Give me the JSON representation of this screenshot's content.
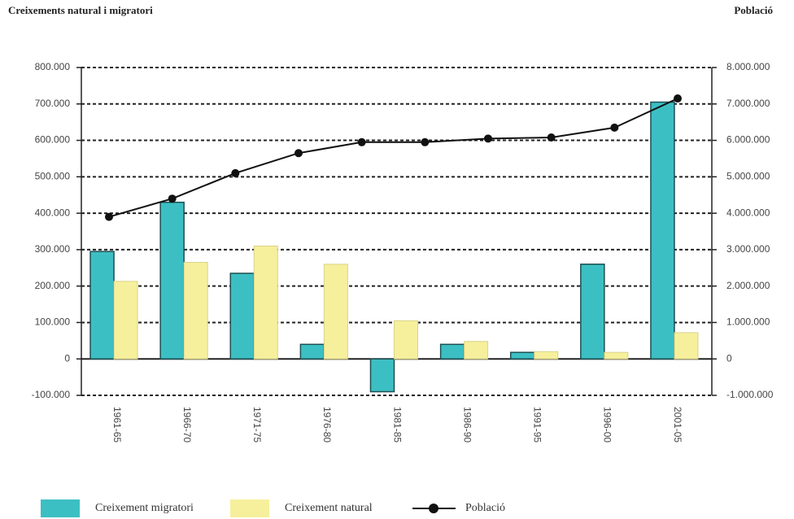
{
  "chart_data": {
    "type": "bar",
    "title": "Creixements natural i migratori",
    "y2_title": "Població",
    "categories": [
      "1961-65",
      "1966-70",
      "1971-75",
      "1976-80",
      "1981-85",
      "1986-90",
      "1991-95",
      "1996-00",
      "2001-05"
    ],
    "series": [
      {
        "name": "Creixement migratori",
        "color": "#3cbfc3",
        "values": [
          295000,
          430000,
          235000,
          40000,
          -90000,
          40000,
          18000,
          260000,
          705000
        ]
      },
      {
        "name": "Creixement natural",
        "color": "#f6f09c",
        "values": [
          213000,
          265000,
          310000,
          260000,
          105000,
          48000,
          20000,
          18000,
          72000
        ]
      }
    ],
    "line_series": {
      "name": "Població",
      "color": "#111111",
      "axis": "y2",
      "values": [
        3900000,
        4400000,
        5100000,
        5650000,
        5950000,
        5950000,
        6050000,
        6080000,
        6350000,
        7150000
      ]
    },
    "ylim": [
      -100000,
      800000
    ],
    "yticks": [
      {
        "value": -100000,
        "label": "-100.000"
      },
      0,
      {
        "value": 100000,
        "label": "100.000"
      },
      {
        "value": 200000,
        "label": "200.000"
      },
      {
        "value": 300000,
        "label": "300.000"
      },
      {
        "value": 400000,
        "label": "400.000"
      },
      {
        "value": 500000,
        "label": "500.000"
      },
      {
        "value": 600000,
        "label": "600.000"
      },
      {
        "value": 700000,
        "label": "700.000"
      },
      {
        "value": 800000,
        "label": "800.000"
      }
    ],
    "y2lim": [
      -1000000,
      8000000
    ],
    "y2ticks": [
      {
        "value": -1000000,
        "label": "-1.000.000"
      },
      0,
      {
        "value": 1000000,
        "label": "1.000.000"
      },
      {
        "value": 2000000,
        "label": "2.000.000"
      },
      {
        "value": 3000000,
        "label": "3.000.000"
      },
      {
        "value": 4000000,
        "label": "4.000.000"
      },
      {
        "value": 5000000,
        "label": "5.000.000"
      },
      {
        "value": 6000000,
        "label": "6.000.000"
      },
      {
        "value": 7000000,
        "label": "7.000.000"
      },
      {
        "value": 8000000,
        "label": "8.000.000"
      }
    ],
    "grid": true
  }
}
